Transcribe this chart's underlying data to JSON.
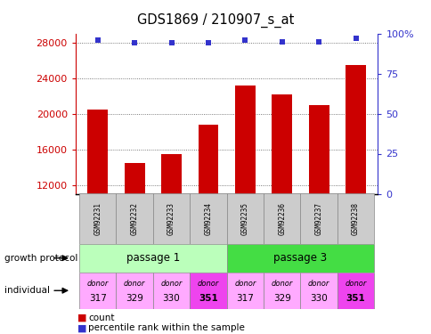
{
  "title": "GDS1869 / 210907_s_at",
  "samples": [
    "GSM92231",
    "GSM92232",
    "GSM92233",
    "GSM92234",
    "GSM92235",
    "GSM92236",
    "GSM92237",
    "GSM92238"
  ],
  "counts": [
    20500,
    14500,
    15500,
    18800,
    23200,
    22200,
    21000,
    25500
  ],
  "percentile_ranks": [
    96,
    94,
    94,
    94,
    96,
    95,
    95,
    97
  ],
  "ylim_left": [
    11000,
    29000
  ],
  "yticks_left": [
    12000,
    16000,
    20000,
    24000,
    28000
  ],
  "yticks_right": [
    0,
    25,
    50,
    75,
    100
  ],
  "ylim_right": [
    0,
    100
  ],
  "bar_color": "#cc0000",
  "dot_color": "#3333cc",
  "growth_protocol": [
    "passage 1",
    "passage 3"
  ],
  "growth_colors": [
    "#bbffbb",
    "#44dd44"
  ],
  "individual_labels_top": [
    "donor",
    "donor",
    "donor",
    "donor",
    "donor",
    "donor",
    "donor",
    "donor"
  ],
  "individual_labels_bot": [
    "317",
    "329",
    "330",
    "351",
    "317",
    "329",
    "330",
    "351"
  ],
  "individual_colors": [
    "#ffaaff",
    "#ffaaff",
    "#ffaaff",
    "#ee44ee",
    "#ffaaff",
    "#ffaaff",
    "#ffaaff",
    "#ee44ee"
  ],
  "sample_box_color": "#cccccc",
  "grid_color": "#555555",
  "background_color": "#ffffff",
  "legend_square_red": "#cc0000",
  "legend_square_blue": "#3333cc"
}
